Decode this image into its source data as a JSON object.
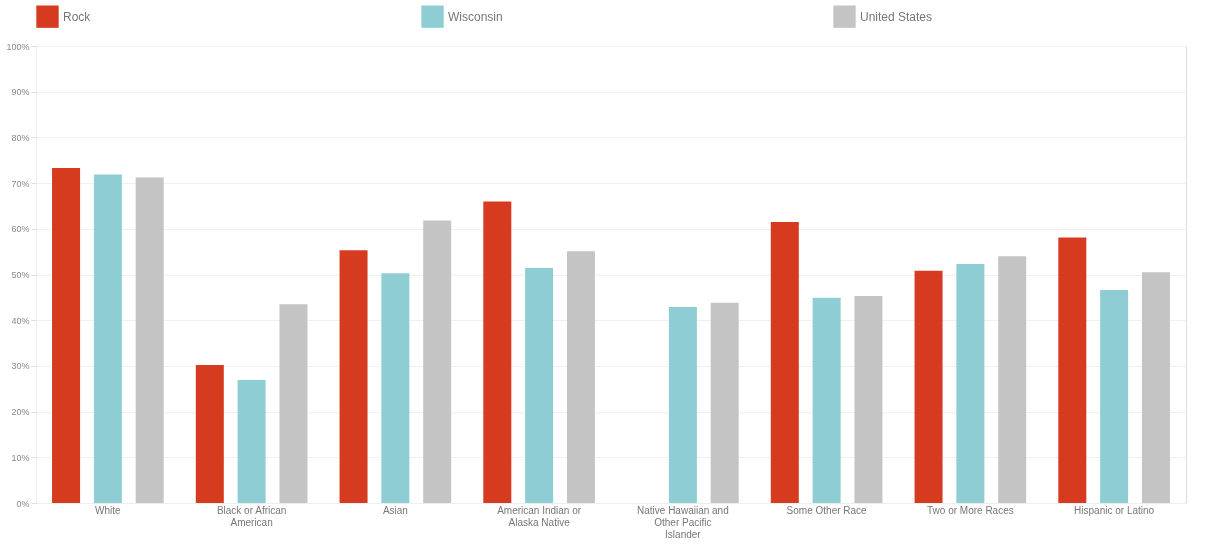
{
  "chart_data": {
    "type": "bar",
    "categories": [
      "White",
      "Black or African American",
      "Asian",
      "American Indian or Alaska Native",
      "Native Hawaiian and Other Pacific Islander",
      "Some Other Race",
      "Two or More Races",
      "Hispanic or Latino"
    ],
    "series": [
      {
        "name": "Rock",
        "color": "#d63a1f",
        "values": [
          73.3,
          30.2,
          55.3,
          66.0,
          null,
          61.5,
          50.8,
          58.1
        ]
      },
      {
        "name": "Wisconsin",
        "color": "#8ecdd4",
        "values": [
          71.9,
          26.9,
          50.3,
          51.4,
          42.9,
          44.9,
          52.3,
          46.6
        ]
      },
      {
        "name": "United States",
        "color": "#c4c4c4",
        "values": [
          71.2,
          43.5,
          61.8,
          55.1,
          43.8,
          45.3,
          54.0,
          50.5
        ]
      }
    ],
    "ylim": [
      0,
      100
    ],
    "yticks": [
      {
        "value": 0,
        "label": "0%"
      },
      {
        "value": 10,
        "label": "10%"
      },
      {
        "value": 20,
        "label": "20%"
      },
      {
        "value": 30,
        "label": "30%"
      },
      {
        "value": 40,
        "label": "40%"
      },
      {
        "value": 50,
        "label": "50%"
      },
      {
        "value": 60,
        "label": "60%"
      },
      {
        "value": 70,
        "label": "70%"
      },
      {
        "value": 80,
        "label": "80%"
      },
      {
        "value": 90,
        "label": "90%"
      },
      {
        "value": 100,
        "label": "100%"
      }
    ],
    "grid": "y",
    "legend": "top"
  }
}
